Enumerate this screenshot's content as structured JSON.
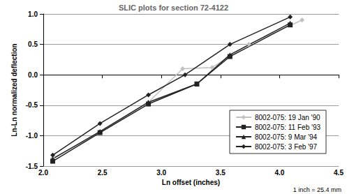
{
  "chart_data": {
    "type": "line",
    "title": "SLIC plots for section 72-4122",
    "x_label": "Ln offset (inches)",
    "y_label": "Ln-Ln normalized deflection",
    "annotation": "1 inch = 25.4 mm",
    "xlim": [
      2.0,
      4.5
    ],
    "xticks": [
      {
        "value": 2,
        "label": "2.0"
      },
      2.5,
      {
        "value": 3,
        "label": "3.0"
      },
      3.5,
      {
        "value": 4,
        "label": "4.0"
      },
      4.5
    ],
    "ylim": [
      -1.5,
      1.0
    ],
    "yticks": [
      -1.5,
      {
        "value": -1,
        "label": "-1.0"
      },
      -0.5,
      {
        "value": 0,
        "label": "0.0"
      },
      0.5,
      {
        "value": 1,
        "label": "1.0"
      }
    ],
    "grid": true,
    "legend": "lower right",
    "series": [
      {
        "name": "8002-075: 19 Jan '90",
        "color": "#c0c0c0",
        "marker": "diamond",
        "x": [
          2.08,
          2.48,
          2.89,
          3.18,
          3.43,
          3.74,
          4.19
        ],
        "values": [
          -1.37,
          -0.95,
          -0.45,
          0.1,
          0.12,
          0.5,
          0.9
        ]
      },
      {
        "name": "8002-075: 11 Feb '93",
        "color": "#222222",
        "marker": "square",
        "x": [
          2.08,
          2.48,
          2.89,
          3.3,
          3.58,
          4.09
        ],
        "values": [
          -1.42,
          -0.95,
          -0.48,
          -0.15,
          0.3,
          0.82
        ]
      },
      {
        "name": "8002-075: 9 Mar '94",
        "color": "#222222",
        "marker": "triangle",
        "x": [
          2.08,
          2.48,
          2.89,
          3.3,
          3.58,
          4.09
        ],
        "values": [
          -1.38,
          -0.93,
          -0.45,
          -0.15,
          0.33,
          0.85
        ]
      },
      {
        "name": "8002-075: 3 Feb '97",
        "color": "#222222",
        "marker": "diamond",
        "x": [
          2.08,
          2.48,
          2.89,
          3.2,
          3.58,
          4.09
        ],
        "values": [
          -1.32,
          -0.8,
          -0.33,
          0.0,
          0.5,
          0.95
        ]
      }
    ]
  }
}
